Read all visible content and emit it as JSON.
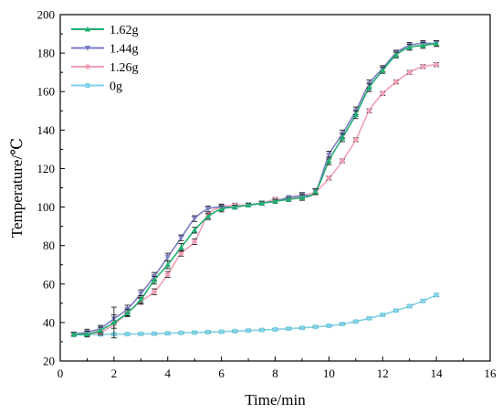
{
  "chart_data": {
    "type": "line",
    "xlabel": "Time/min",
    "ylabel": "Temperature/℃",
    "xlim": [
      0,
      16
    ],
    "ylim": [
      20,
      200
    ],
    "xticks": [
      0,
      2,
      4,
      6,
      8,
      10,
      12,
      14,
      16
    ],
    "yticks": [
      20,
      40,
      60,
      80,
      100,
      120,
      140,
      160,
      180,
      200
    ],
    "x": [
      0.5,
      1.0,
      1.5,
      2.0,
      2.5,
      3.0,
      3.5,
      4.0,
      4.5,
      5.0,
      5.5,
      6.0,
      6.5,
      7.0,
      7.5,
      8.0,
      8.5,
      9.0,
      9.5,
      10.0,
      10.5,
      11.0,
      11.5,
      12.0,
      12.5,
      13.0,
      13.5,
      14.0
    ],
    "legend_position": "top-left",
    "grid": false,
    "series": [
      {
        "name": "1.62g",
        "color": "#1fae6e",
        "marker": "triangle-up",
        "values": [
          34,
          34,
          36,
          40,
          45,
          52,
          62,
          70,
          79,
          88,
          95,
          99,
          100,
          101,
          102,
          103,
          104,
          105,
          108,
          124,
          136,
          148,
          162,
          171,
          179,
          183,
          184,
          185
        ],
        "errors": [
          1,
          1.5,
          1.5,
          8,
          2,
          2,
          2,
          2,
          2,
          1.5,
          1.5,
          1.5,
          1,
          1,
          1,
          1,
          1,
          1.5,
          1.5,
          2,
          2,
          2,
          2,
          1.5,
          1.5,
          1.5,
          1.5,
          1.5
        ]
      },
      {
        "name": "1.44g",
        "color": "#7a7ec4",
        "marker": "triangle-down",
        "values": [
          34,
          35,
          37,
          42,
          47,
          55,
          64,
          74,
          84,
          94,
          99,
          100,
          100,
          101,
          102,
          103,
          105,
          106,
          108,
          127,
          138,
          150,
          164,
          172,
          180,
          184,
          185,
          185
        ],
        "errors": [
          1,
          1.5,
          1.5,
          2,
          2,
          2,
          2,
          2,
          1.5,
          1.5,
          1.5,
          1.5,
          1,
          1,
          1,
          1,
          1,
          1.5,
          1.5,
          2,
          2,
          2,
          2,
          1.5,
          1.5,
          1.5,
          1.5,
          1.5
        ]
      },
      {
        "name": "1.26g",
        "color": "#f0a0b4",
        "marker": "circle",
        "values": [
          34,
          34,
          35,
          39,
          45,
          51,
          56,
          65,
          76,
          82,
          96,
          100,
          101,
          101,
          102,
          104,
          104,
          106,
          108,
          115,
          124,
          135,
          150,
          159,
          165,
          170,
          173,
          174
        ],
        "errors": [
          1,
          1,
          1.5,
          2,
          1.5,
          1.5,
          1.5,
          1.5,
          1.5,
          1.5,
          1.5,
          1.5,
          1,
          1,
          1,
          1,
          1,
          1,
          1,
          1,
          1,
          1,
          1,
          1,
          1,
          1,
          1,
          1
        ]
      },
      {
        "name": "0g",
        "color": "#7fd3e8",
        "marker": "square",
        "values": [
          33.5,
          33.7,
          33.8,
          33.9,
          34.0,
          34.1,
          34.2,
          34.4,
          34.6,
          34.8,
          35.0,
          35.2,
          35.5,
          35.8,
          36.1,
          36.4,
          36.8,
          37.2,
          37.7,
          38.3,
          39.2,
          40.5,
          42.2,
          44.0,
          46.2,
          48.5,
          51.2,
          54.3
        ],
        "errors": [
          0.5,
          0.5,
          0.5,
          0.5,
          0.5,
          0.5,
          0.5,
          0.5,
          0.5,
          0.5,
          0.5,
          0.5,
          0.5,
          0.5,
          0.5,
          0.5,
          0.5,
          0.5,
          0.5,
          0.5,
          0.5,
          0.5,
          0.5,
          0.5,
          0.5,
          0.8,
          0.8,
          0.8
        ]
      }
    ]
  }
}
